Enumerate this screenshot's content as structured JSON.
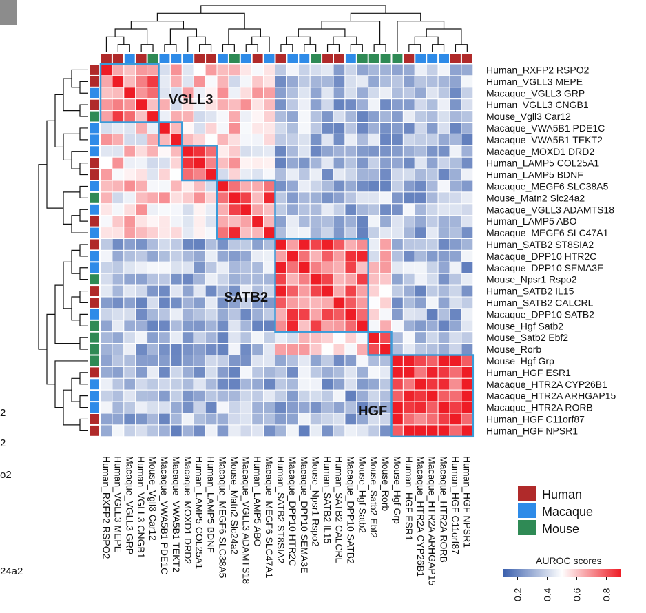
{
  "chart_data": {
    "type": "heatmap",
    "title": "",
    "labels": [
      "Human_RXFP2 RSPO2",
      "Human_VGLL3 MEPE",
      "Macaque_VGLL3 GRP",
      "Human_VGLL3 CNGB1",
      "Mouse_Vgll3 Car12",
      "Macaque_VWA5B1 PDE1C",
      "Macaque_VWA5B1 TEKT2",
      "Macaque_MOXD1 DRD2",
      "Human_LAMP5 COL25A1",
      "Human_LAMP5 BDNF",
      "Macaque_MEGF6 SLC38A5",
      "Mouse_Matn2 Slc24a2",
      "Macaque_VGLL3 ADAMTS18",
      "Human_LAMP5 ABO",
      "Macaque_MEGF6 SLC47A1",
      "Human_SATB2 ST8SIA2",
      "Macaque_DPP10 HTR2C",
      "Macaque_DPP10 SEMA3E",
      "Mouse_Npsr1 Rspo2",
      "Human_SATB2 IL15",
      "Human_SATB2 CALCRL",
      "Macaque_DPP10 SATB2",
      "Mouse_Hgf Satb2",
      "Mouse_Satb2 Ebf2",
      "Mouse_Rorb",
      "Mouse_Hgf Grp",
      "Human_HGF ESR1",
      "Macaque_HTR2A CYP26B1",
      "Macaque_HTR2A ARHGAP15",
      "Macaque_HTR2A RORB",
      "Human_HGF C11orf87",
      "Human_HGF NPSR1"
    ],
    "species_of_label": [
      "Human",
      "Human",
      "Macaque",
      "Human",
      "Mouse",
      "Macaque",
      "Macaque",
      "Macaque",
      "Human",
      "Human",
      "Macaque",
      "Mouse",
      "Macaque",
      "Human",
      "Macaque",
      "Human",
      "Macaque",
      "Macaque",
      "Mouse",
      "Human",
      "Human",
      "Macaque",
      "Mouse",
      "Mouse",
      "Mouse",
      "Mouse",
      "Human",
      "Macaque",
      "Macaque",
      "Macaque",
      "Human",
      "Human"
    ],
    "clusters": [
      {
        "name": "VGLL3",
        "start": 0,
        "end": 4
      },
      {
        "name": "",
        "start": 5,
        "end": 6
      },
      {
        "name": "",
        "start": 7,
        "end": 9
      },
      {
        "name": "",
        "start": 10,
        "end": 14
      },
      {
        "name": "SATB2",
        "start": 15,
        "end": 22
      },
      {
        "name": "",
        "start": 23,
        "end": 24
      },
      {
        "name": "HGF",
        "start": 25,
        "end": 31
      }
    ],
    "legend": [
      {
        "label": "Human",
        "color": "#b02a2a"
      },
      {
        "label": "Macaque",
        "color": "#2e8be8"
      },
      {
        "label": "Mouse",
        "color": "#2f8a55"
      }
    ],
    "colorbar": {
      "title": "AUROC scores",
      "ticks": [
        "0.2",
        "0.4",
        "0.6",
        "0.8"
      ],
      "range": [
        0.1,
        0.9
      ],
      "colors": [
        "#3a5fad",
        "#ffffff",
        "#ee1c25"
      ]
    },
    "value_range": [
      0.1,
      0.95
    ]
  },
  "stray_left_labels": [
    "2",
    "2",
    "o2",
    "24a2"
  ]
}
